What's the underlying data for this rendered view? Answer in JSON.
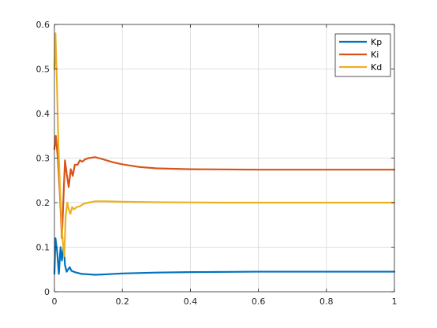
{
  "chart_data": {
    "type": "line",
    "title": "",
    "xlabel": "",
    "ylabel": "",
    "xlim": [
      0,
      1
    ],
    "ylim": [
      0,
      0.6
    ],
    "xticks": [
      0,
      0.2,
      0.4,
      0.6,
      0.8,
      1
    ],
    "yticks": [
      0,
      0.1,
      0.2,
      0.3,
      0.4,
      0.5,
      0.6
    ],
    "xtick_labels": [
      "0",
      "0.2",
      "0.4",
      "0.6",
      "0.8",
      "1"
    ],
    "ytick_labels": [
      "0",
      "0.1",
      "0.2",
      "0.3",
      "0.4",
      "0.5",
      "0.6"
    ],
    "grid": true,
    "legend_position": "top-right",
    "series": [
      {
        "name": "Kp",
        "color": "#0072BD",
        "points": [
          [
            0,
            0.04
          ],
          [
            0.003,
            0.12
          ],
          [
            0.008,
            0.09
          ],
          [
            0.013,
            0.04
          ],
          [
            0.018,
            0.1
          ],
          [
            0.022,
            0.07
          ],
          [
            0.027,
            0.105
          ],
          [
            0.031,
            0.06
          ],
          [
            0.036,
            0.045
          ],
          [
            0.04,
            0.05
          ],
          [
            0.045,
            0.055
          ],
          [
            0.05,
            0.047
          ],
          [
            0.06,
            0.044
          ],
          [
            0.07,
            0.042
          ],
          [
            0.08,
            0.04
          ],
          [
            0.1,
            0.039
          ],
          [
            0.12,
            0.038
          ],
          [
            0.15,
            0.039
          ],
          [
            0.2,
            0.041
          ],
          [
            0.3,
            0.043
          ],
          [
            0.4,
            0.044
          ],
          [
            0.6,
            0.045
          ],
          [
            0.8,
            0.045
          ],
          [
            1,
            0.045
          ]
        ]
      },
      {
        "name": "Ki",
        "color": "#D95319",
        "points": [
          [
            0,
            0.32
          ],
          [
            0.004,
            0.35
          ],
          [
            0.01,
            0.3
          ],
          [
            0.016,
            0.22
          ],
          [
            0.022,
            0.12
          ],
          [
            0.026,
            0.2
          ],
          [
            0.031,
            0.295
          ],
          [
            0.036,
            0.265
          ],
          [
            0.042,
            0.235
          ],
          [
            0.048,
            0.275
          ],
          [
            0.054,
            0.26
          ],
          [
            0.06,
            0.285
          ],
          [
            0.068,
            0.285
          ],
          [
            0.075,
            0.295
          ],
          [
            0.082,
            0.292
          ],
          [
            0.09,
            0.297
          ],
          [
            0.1,
            0.3
          ],
          [
            0.12,
            0.302
          ],
          [
            0.14,
            0.298
          ],
          [
            0.17,
            0.291
          ],
          [
            0.2,
            0.286
          ],
          [
            0.25,
            0.28
          ],
          [
            0.3,
            0.277
          ],
          [
            0.4,
            0.275
          ],
          [
            0.6,
            0.274
          ],
          [
            0.8,
            0.274
          ],
          [
            1,
            0.274
          ]
        ]
      },
      {
        "name": "Kd",
        "color": "#EDB120",
        "points": [
          [
            0,
            0.5
          ],
          [
            0.003,
            0.58
          ],
          [
            0.007,
            0.48
          ],
          [
            0.012,
            0.32
          ],
          [
            0.017,
            0.22
          ],
          [
            0.022,
            0.14
          ],
          [
            0.026,
            0.1
          ],
          [
            0.029,
            0.08
          ],
          [
            0.033,
            0.17
          ],
          [
            0.038,
            0.2
          ],
          [
            0.042,
            0.185
          ],
          [
            0.047,
            0.175
          ],
          [
            0.052,
            0.19
          ],
          [
            0.058,
            0.185
          ],
          [
            0.065,
            0.19
          ],
          [
            0.075,
            0.192
          ],
          [
            0.085,
            0.197
          ],
          [
            0.1,
            0.2
          ],
          [
            0.12,
            0.203
          ],
          [
            0.15,
            0.203
          ],
          [
            0.2,
            0.202
          ],
          [
            0.3,
            0.201
          ],
          [
            0.5,
            0.2
          ],
          [
            1,
            0.2
          ]
        ]
      }
    ]
  }
}
